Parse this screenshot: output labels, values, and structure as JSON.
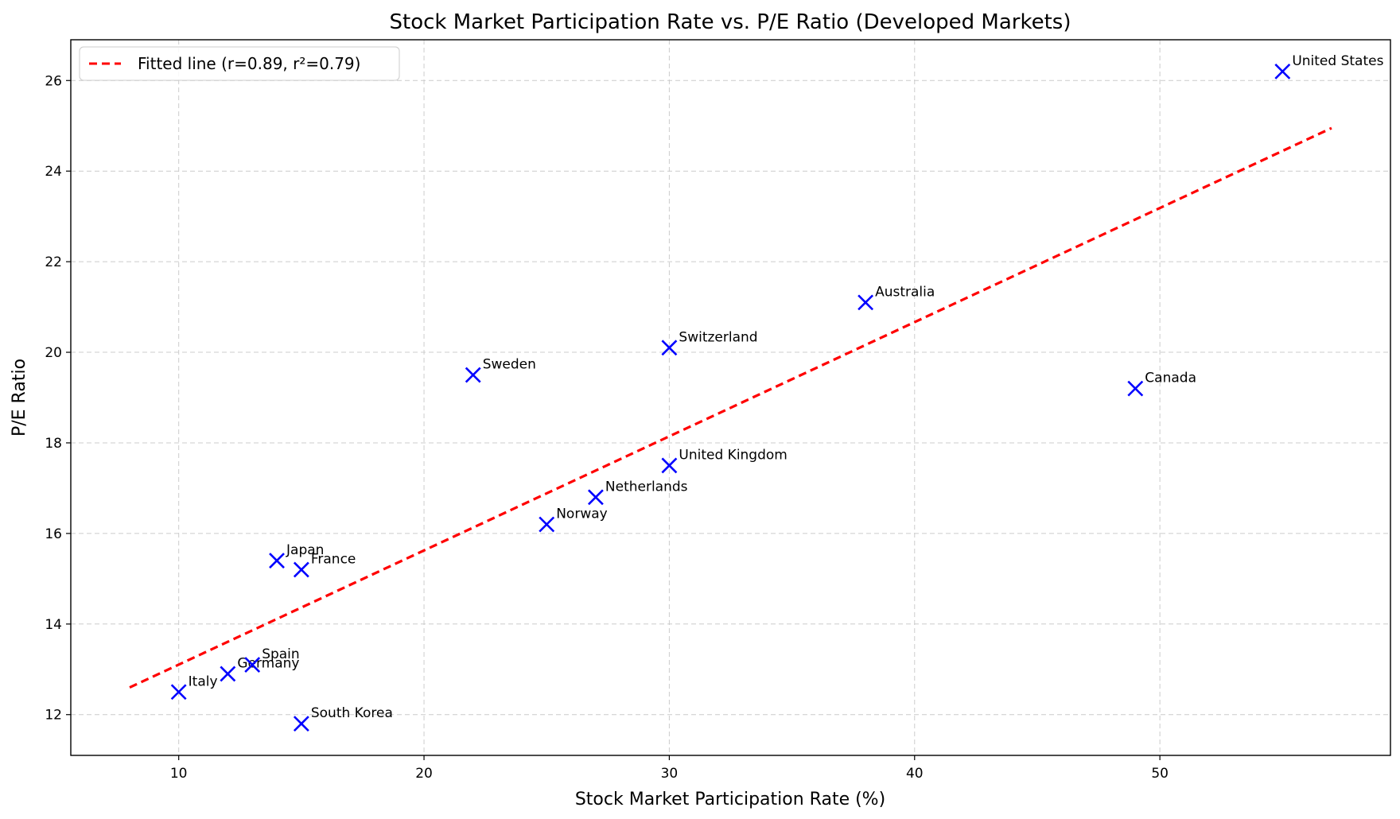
{
  "chart_data": {
    "type": "scatter",
    "title": "Stock Market Participation Rate vs. P/E Ratio (Developed Markets)",
    "xlabel": "Stock Market Participation Rate (%)",
    "ylabel": "P/E Ratio",
    "xlim": [
      5.6,
      59.4
    ],
    "ylim": [
      11.1,
      26.9
    ],
    "xticks": [
      10,
      20,
      30,
      40,
      50
    ],
    "yticks": [
      12,
      14,
      16,
      18,
      20,
      22,
      24,
      26
    ],
    "grid": true,
    "legend_position": "top-left",
    "colors": {
      "points": "#0000ff",
      "fit_line": "#ff0000",
      "grid": "#cccccc"
    },
    "points": [
      {
        "label": "Italy",
        "x": 10,
        "y": 12.5
      },
      {
        "label": "Germany",
        "x": 12,
        "y": 12.9
      },
      {
        "label": "Spain",
        "x": 13,
        "y": 13.1
      },
      {
        "label": "Japan",
        "x": 14,
        "y": 15.4
      },
      {
        "label": "France",
        "x": 15,
        "y": 15.2
      },
      {
        "label": "South Korea",
        "x": 15,
        "y": 11.8
      },
      {
        "label": "Sweden",
        "x": 22,
        "y": 19.5
      },
      {
        "label": "Norway",
        "x": 25,
        "y": 16.2
      },
      {
        "label": "Netherlands",
        "x": 27,
        "y": 16.8
      },
      {
        "label": "Switzerland",
        "x": 30,
        "y": 20.1
      },
      {
        "label": "United Kingdom",
        "x": 30,
        "y": 17.5
      },
      {
        "label": "Australia",
        "x": 38,
        "y": 21.1
      },
      {
        "label": "Canada",
        "x": 49,
        "y": 19.2
      },
      {
        "label": "United States",
        "x": 55,
        "y": 26.2
      }
    ],
    "fit_line": {
      "name": "Fitted line (r=0.89, r²=0.79)",
      "x": [
        8,
        57
      ],
      "y": [
        12.6,
        24.95
      ]
    }
  }
}
